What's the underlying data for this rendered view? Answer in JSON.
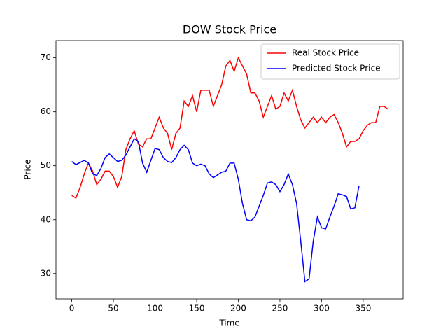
{
  "chart_data": {
    "type": "line",
    "title": "DOW Stock Price",
    "x_label": "Time",
    "y_label": "Price",
    "x": [
      0,
      5,
      10,
      15,
      20,
      25,
      30,
      35,
      40,
      45,
      50,
      55,
      60,
      65,
      70,
      75,
      80,
      85,
      90,
      95,
      100,
      105,
      110,
      115,
      120,
      125,
      130,
      135,
      140,
      145,
      150,
      155,
      160,
      165,
      170,
      175,
      180,
      185,
      190,
      195,
      200,
      205,
      210,
      215,
      220,
      225,
      230,
      235,
      240,
      245,
      250,
      255,
      260,
      265,
      270,
      275,
      280,
      285,
      290,
      295,
      300,
      305,
      310,
      315,
      320,
      325,
      330,
      335,
      340,
      345,
      350,
      355,
      360,
      365,
      370,
      375,
      380
    ],
    "series": [
      {
        "name": "Real Stock Price",
        "color": "#ff0000",
        "values": [
          44.5,
          44,
          46,
          48.5,
          50.5,
          49,
          46.5,
          47.5,
          49,
          49,
          48,
          46,
          48,
          53,
          55,
          56.5,
          54,
          53.5,
          55,
          55,
          57,
          59,
          57,
          56,
          53,
          56,
          57,
          62,
          61,
          63,
          60,
          64,
          64,
          64,
          61,
          63,
          65,
          68.5,
          69.5,
          67.5,
          70,
          68.5,
          67,
          63.5,
          63.5,
          62,
          59,
          61,
          63,
          60.5,
          61,
          63.5,
          62,
          64,
          61,
          58.5,
          57,
          58,
          59,
          58,
          59,
          58,
          59,
          59.5,
          58,
          56,
          53.5,
          54.5,
          54.5,
          55,
          56.5,
          57.5,
          58,
          58,
          61,
          61,
          60.5
        ]
      },
      {
        "name": "Predicted Stock Price",
        "color": "#0000ff",
        "values": [
          50.8,
          50.2,
          50.6,
          51,
          50.5,
          48.5,
          48.2,
          49.5,
          51.5,
          52.2,
          51.5,
          50.8,
          51,
          52,
          53.5,
          55,
          54.5,
          50.5,
          48.8,
          51,
          53.2,
          53,
          51.5,
          50.8,
          50.6,
          51.5,
          53,
          53.8,
          53,
          50.5,
          50,
          50.3,
          50,
          48.5,
          47.8,
          48.3,
          48.8,
          49,
          50.5,
          50.5,
          47.5,
          43,
          40,
          39.8,
          40.5,
          42.5,
          44.5,
          46.8,
          47,
          46.5,
          45.2,
          46.5,
          48.5,
          46.5,
          43,
          36,
          28.5,
          29,
          36,
          40.5,
          38.5,
          38.3,
          40.5,
          42.5,
          44.8,
          44.6,
          44.3,
          42,
          42.2,
          46.3,
          null,
          null,
          null,
          null,
          null,
          null,
          null
        ]
      }
    ],
    "xlim": [
      -19,
      398
    ],
    "ylim": [
      25.3,
      73.2
    ],
    "xticks": [
      0,
      50,
      100,
      150,
      200,
      250,
      300,
      350
    ],
    "yticks": [
      30,
      40,
      50,
      60,
      70
    ],
    "legend": "upper right"
  }
}
